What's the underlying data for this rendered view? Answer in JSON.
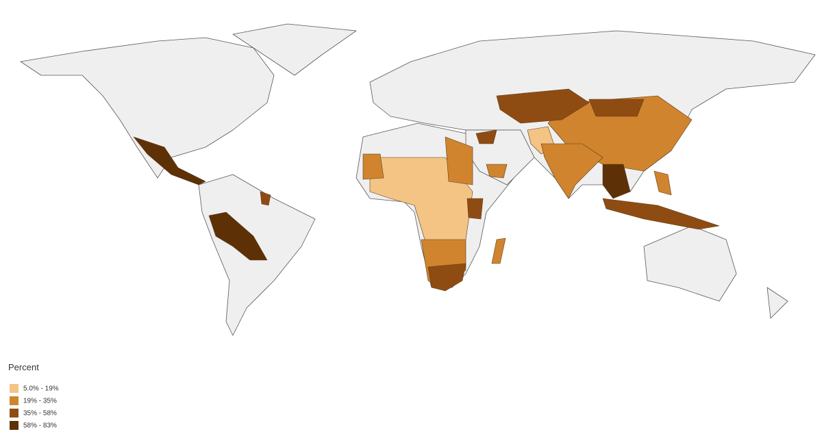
{
  "legend": {
    "title": "Percent",
    "items": [
      {
        "label": "5.0% - 19%",
        "color": "#f3c484"
      },
      {
        "label": "19% - 35%",
        "color": "#d0842e"
      },
      {
        "label": "35% - 58%",
        "color": "#8f4c12"
      },
      {
        "label": "58% - 83%",
        "color": "#5e3006"
      }
    ]
  }
}
